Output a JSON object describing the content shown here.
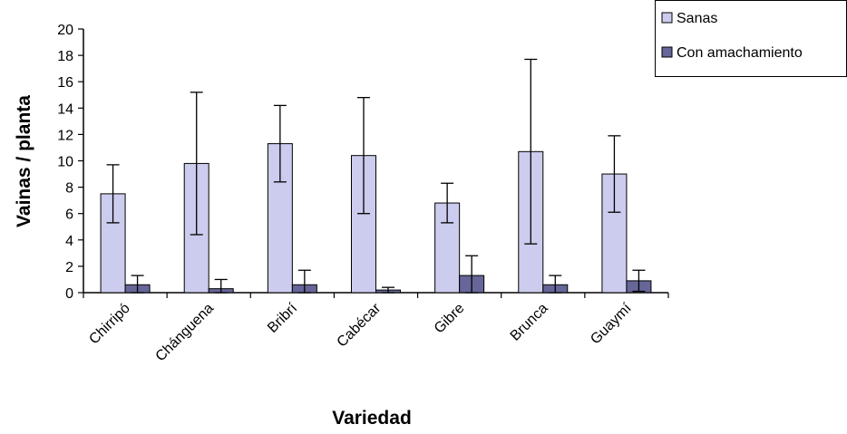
{
  "chart_data": {
    "type": "bar",
    "x_label": "Variedad",
    "y_label": "Vainas / planta",
    "categories": [
      "Chirripó",
      "Chánguena",
      "Bribrí",
      "Cabécar",
      "Gibre",
      "Brunca",
      "Guaymí"
    ],
    "series": [
      {
        "name": "Sanas",
        "color": "#ccccee",
        "values": [
          7.5,
          9.8,
          11.3,
          10.4,
          6.8,
          10.7,
          9.0
        ],
        "errors": [
          2.2,
          5.4,
          2.9,
          4.4,
          1.5,
          7.0,
          2.9
        ]
      },
      {
        "name": "Con amachamiento",
        "color": "#666699",
        "values": [
          0.6,
          0.3,
          0.6,
          0.2,
          1.3,
          0.6,
          0.9
        ],
        "errors": [
          0.7,
          0.7,
          1.1,
          0.2,
          1.5,
          0.7,
          0.8
        ]
      }
    ],
    "ylim": [
      0,
      20
    ],
    "yticks": [
      0,
      2,
      4,
      6,
      8,
      10,
      12,
      14,
      16,
      18,
      20
    ],
    "legend": "top-right"
  }
}
